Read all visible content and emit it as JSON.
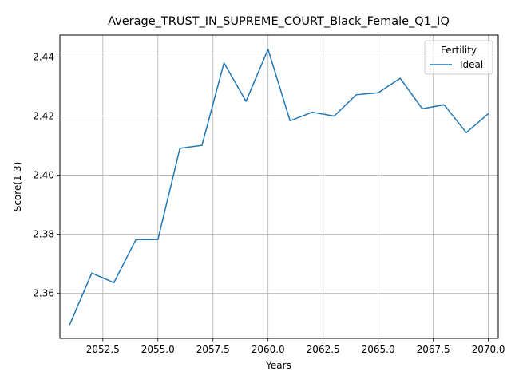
{
  "chart_data": {
    "type": "line",
    "title": "Average_TRUST_IN_SUPREME_COURT_Black_Female_Q1_IQ",
    "xlabel": "Years",
    "ylabel": "Score(1-3)",
    "xlim": [
      2050.55,
      2070.45
    ],
    "ylim": [
      2.3448,
      2.4474
    ],
    "x_ticks": [
      2052.5,
      2055.0,
      2057.5,
      2060.0,
      2062.5,
      2065.0,
      2067.5,
      2070.0
    ],
    "x_tick_labels": [
      "2052.5",
      "2055.0",
      "2057.5",
      "2060.0",
      "2062.5",
      "2065.0",
      "2067.5",
      "2070.0"
    ],
    "y_ticks": [
      2.36,
      2.38,
      2.4,
      2.42,
      2.44
    ],
    "y_tick_labels": [
      "2.36",
      "2.38",
      "2.40",
      "2.42",
      "2.44"
    ],
    "grid": true,
    "legend": {
      "title": "Fertility",
      "placement": "top-right"
    },
    "x": [
      2051,
      2052,
      2053,
      2054,
      2055,
      2056,
      2057,
      2058,
      2059,
      2060,
      2061,
      2062,
      2063,
      2064,
      2065,
      2066,
      2067,
      2068,
      2069,
      2070
    ],
    "series": [
      {
        "name": "Ideal",
        "color": "#1f77b4",
        "values": [
          2.3495,
          2.3669,
          2.3636,
          2.3782,
          2.3782,
          2.4091,
          2.4101,
          2.438,
          2.425,
          2.4426,
          2.4184,
          2.4213,
          2.42,
          2.4272,
          2.4279,
          2.4328,
          2.4225,
          2.4238,
          2.4144,
          2.4208
        ]
      }
    ]
  }
}
